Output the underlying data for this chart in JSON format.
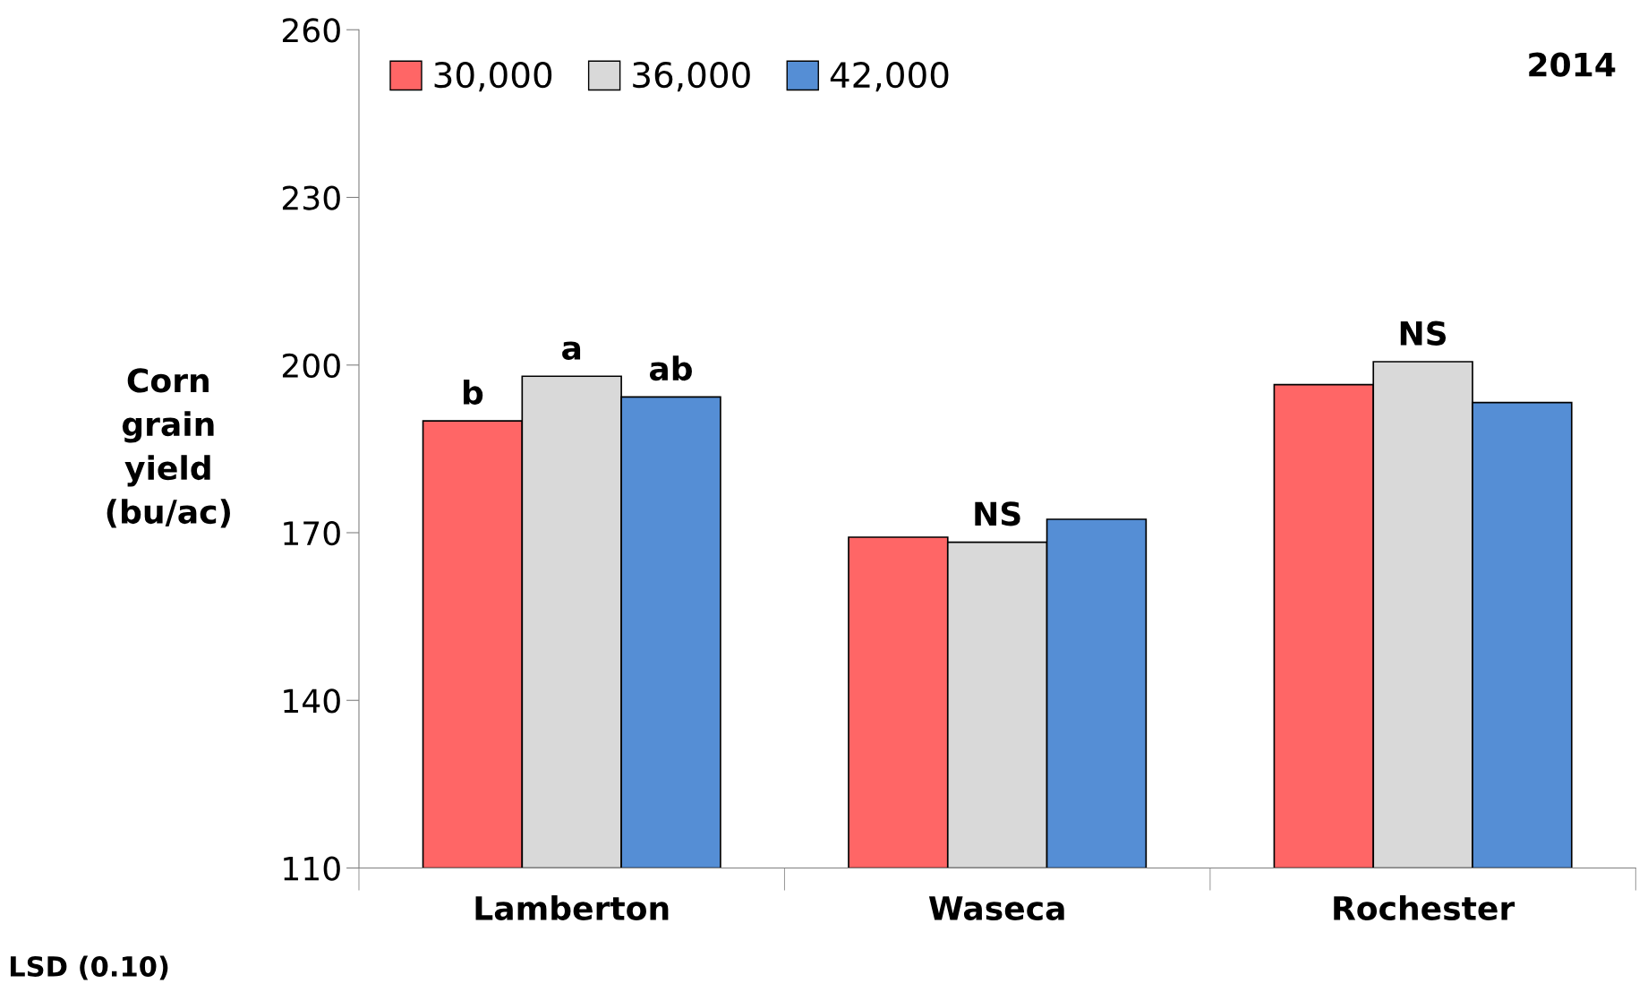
{
  "chart_data": {
    "type": "bar",
    "ylabel": "Corn\ngrain\nyield\n(bu/ac)",
    "categories": [
      "Lamberton",
      "Waseca",
      "Rochester"
    ],
    "series": [
      {
        "name": "30,000",
        "color": "#ff6666",
        "values": [
          190,
          169.2,
          196.5
        ],
        "value_labels": [
          "b",
          null,
          null
        ]
      },
      {
        "name": "36,000",
        "color": "#d9d9d9",
        "values": [
          198,
          168.3,
          200.6
        ],
        "value_labels": [
          "a",
          "NS",
          "NS"
        ]
      },
      {
        "name": "42,000",
        "color": "#558ed5",
        "values": [
          194.3,
          172.4,
          193.3
        ],
        "value_labels": [
          "ab",
          null,
          null
        ]
      }
    ],
    "ylim": [
      110,
      260
    ],
    "yticks": [
      110,
      140,
      170,
      200,
      230,
      260
    ],
    "grid": false,
    "legend": "top left",
    "annotations": [
      "2014",
      "LSD (0.10)"
    ]
  }
}
